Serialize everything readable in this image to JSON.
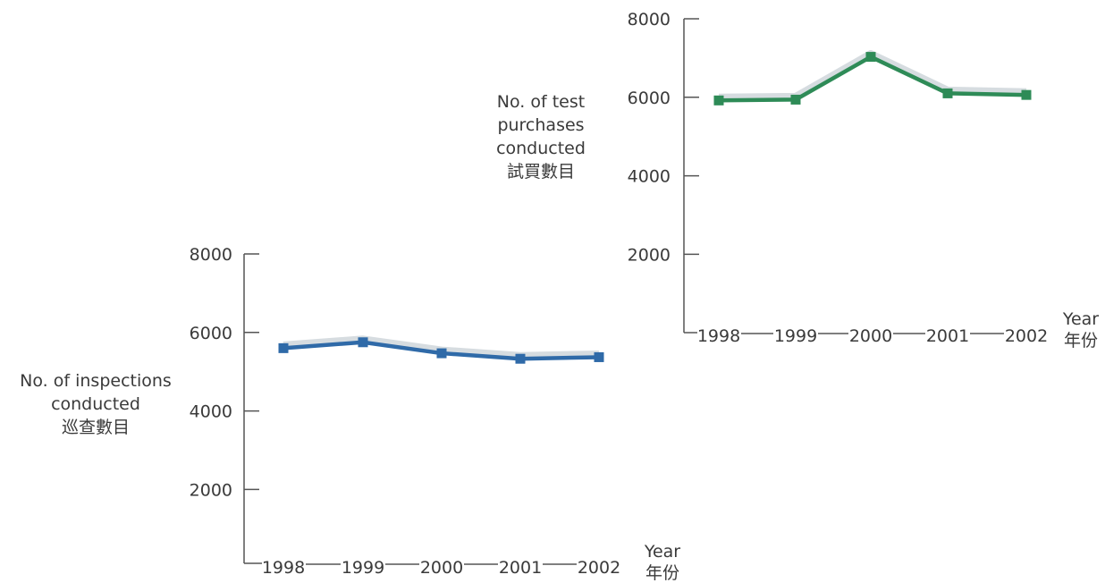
{
  "chart_data": [
    {
      "type": "line",
      "ylabel_lines": [
        "No. of inspections",
        "conducted",
        "巡查數目"
      ],
      "xlabel_lines": [
        "Year",
        "年份"
      ],
      "yticks": [
        2000,
        4000,
        6000,
        8000
      ],
      "ylim": [
        0,
        8000
      ],
      "categories": [
        "1998",
        "1999",
        "2000",
        "2001",
        "2002"
      ],
      "series": [
        {
          "values": [
            5600,
            5750,
            5470,
            5330,
            5370
          ],
          "color": "#2f6aa8"
        }
      ],
      "grid": false
    },
    {
      "type": "line",
      "ylabel_lines": [
        "No. of  test",
        "purchases",
        "conducted",
        "試買數目"
      ],
      "xlabel_lines": [
        "Year",
        "年份"
      ],
      "yticks": [
        2000,
        4000,
        6000,
        8000
      ],
      "ylim": [
        0,
        8000
      ],
      "categories": [
        "1998",
        "1999",
        "2000",
        "2001",
        "2002"
      ],
      "series": [
        {
          "values": [
            5920,
            5940,
            7030,
            6100,
            6060
          ],
          "color": "#2e8b57"
        }
      ],
      "grid": false
    }
  ]
}
